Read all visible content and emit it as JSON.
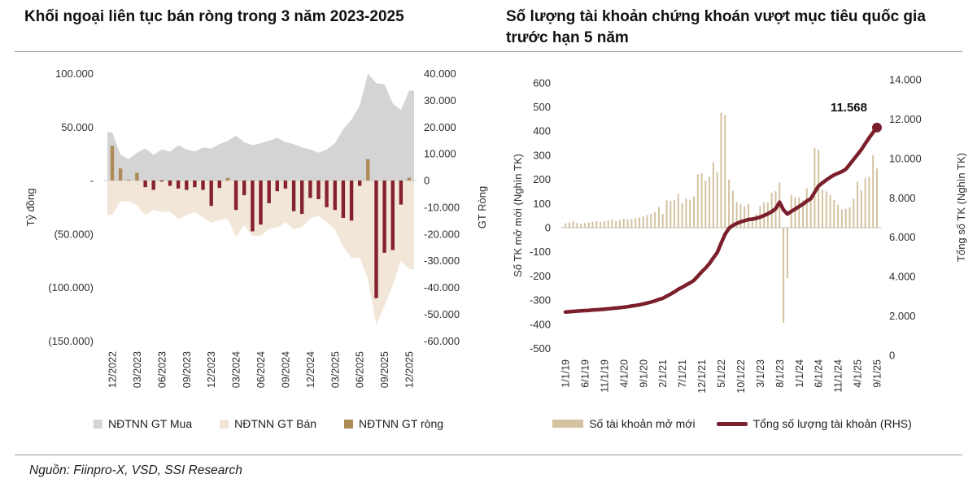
{
  "source": {
    "text": "Nguồn: Fiinpro-X, VSD, SSI Research"
  },
  "chart_data": [
    {
      "id": "foreign-net-selling",
      "type": "combo-area-bar",
      "title": "Khối ngoại liên tục bán ròng trong 3 năm 2023-2025",
      "ylabel_left": "Tỷ đồng",
      "ylabel_right": "GT Ròng",
      "x_frequency": "monthly",
      "x_range": [
        "12/2022",
        "12/2025"
      ],
      "x_tick_labels": [
        "12/2022",
        "03/2023",
        "06/2023",
        "09/2023",
        "12/2023",
        "03/2024",
        "06/2024",
        "09/2024",
        "12/2024",
        "03/2025",
        "06/2025",
        "09/2025",
        "12/2025"
      ],
      "y_left_ticks": {
        "labels": [
          "100.000",
          "50.000",
          "-",
          "(50.000)",
          "(100.000)",
          "(150.000)"
        ],
        "values": [
          100,
          50,
          0,
          -50,
          -100,
          -150
        ]
      },
      "y_right_ticks": {
        "labels": [
          "40.000",
          "30.000",
          "20.000",
          "10.000",
          "0",
          "-10.000",
          "-20.000",
          "-30.000",
          "-40.000",
          "-50.000",
          "-60.000"
        ],
        "values": [
          40,
          30,
          20,
          10,
          0,
          -10,
          -20,
          -30,
          -40,
          -50,
          -60
        ]
      },
      "values_scale": "1 = 1.000 tỷ đồng",
      "ylim_left": [
        -150,
        100
      ],
      "ylim_right": [
        -60,
        40
      ],
      "series": [
        {
          "name": "NĐTNN GT Mua",
          "type": "area",
          "axis": "left",
          "color": "#d4d4d4",
          "values": [
            45,
            24,
            20,
            26,
            30,
            24,
            29,
            27,
            33,
            29,
            27,
            31,
            30,
            34,
            37,
            42,
            36,
            33,
            35,
            37,
            40,
            36,
            34,
            31,
            29,
            26,
            29,
            35,
            48,
            57,
            70,
            100,
            91,
            90,
            72,
            66,
            84
          ]
        },
        {
          "name": "NĐTNN GT Bán",
          "type": "area",
          "axis": "left",
          "color": "#f1e6d8",
          "values": [
            -32,
            -19.5,
            -19.7,
            -23.1,
            -32.5,
            -27.5,
            -29.4,
            -29,
            -36,
            -32.5,
            -29.5,
            -34.5,
            -39.5,
            -36.8,
            -36,
            -53,
            -41.5,
            -52,
            -51.5,
            -45.5,
            -44,
            -39,
            -45.5,
            -43.5,
            -35.5,
            -33,
            -39,
            -46,
            -62,
            -72,
            -72,
            -92,
            -135,
            -117,
            -98,
            -75,
            -83
          ]
        },
        {
          "name": "NĐTNN GT ròng",
          "type": "bar",
          "axis": "right",
          "color_positive": "#ad8a56",
          "color_negative": "#86222f",
          "values": [
            13,
            4.5,
            0.3,
            2.9,
            -2.5,
            -3.5,
            -0.4,
            -2,
            -3,
            -3.5,
            -2.5,
            -3.5,
            -9.5,
            -2.8,
            1,
            -11,
            -5.5,
            -19,
            -16.5,
            -8.5,
            -4,
            -3,
            -11.5,
            -12.5,
            -6.5,
            -7,
            -10,
            -11,
            -14,
            -15,
            -2,
            8,
            -44,
            -27,
            -26,
            -9,
            1
          ]
        }
      ]
    },
    {
      "id": "securities-accounts",
      "type": "combo-bar-line",
      "title": "Số lượng tài khoản chứng khoán vượt mục tiêu quốc gia trước hạn 5 năm",
      "ylabel_left": "Số TK mở mới (Nghìn TK)",
      "ylabel_right": "Tổng số TK (Nghìn TK)",
      "x_frequency": "monthly",
      "x_range": [
        "1/1/19",
        "9/1/25"
      ],
      "x_tick_labels": [
        "1/1/19",
        "6/1/19",
        "11/1/19",
        "4/1/20",
        "9/1/20",
        "2/1/21",
        "7/1/21",
        "12/1/21",
        "5/1/22",
        "10/1/22",
        "3/1/23",
        "8/1/23",
        "1/1/24",
        "6/1/24",
        "11/1/24",
        "4/1/25",
        "9/1/25"
      ],
      "y_left_ticks": {
        "labels": [
          "600",
          "500",
          "400",
          "300",
          "200",
          "100",
          "0",
          "-100",
          "-200",
          "-300",
          "-400",
          "-500"
        ],
        "values": [
          600,
          500,
          400,
          300,
          200,
          100,
          0,
          -100,
          -200,
          -300,
          -400,
          -500
        ]
      },
      "y_right_ticks": {
        "labels": [
          "14.000",
          "12.000",
          "10.000",
          "8.000",
          "6.000",
          "4.000",
          "2.000",
          "0"
        ],
        "values": [
          14000,
          12000,
          10000,
          8000,
          6000,
          4000,
          2000,
          0
        ]
      },
      "ylim_left": [
        -500,
        600
      ],
      "ylim_right": [
        0,
        14000
      ],
      "annotation": {
        "text": "11.568",
        "attached_to": "last point of line series"
      },
      "series": [
        {
          "name": "Số tài khoản mở mới",
          "type": "bar",
          "axis": "left",
          "color": "#d4c2a0",
          "values": [
            18,
            22,
            26,
            20,
            17,
            19,
            22,
            25,
            27,
            24,
            27,
            31,
            34,
            28,
            32,
            37,
            34,
            36,
            39,
            42,
            46,
            52,
            58,
            64,
            86,
            57,
            113,
            110,
            114,
            140,
            101,
            120,
            114,
            129,
            221,
            226,
            195,
            210,
            271,
            230,
            476,
            466,
            199,
            153,
            105,
            97,
            89,
            99,
            36,
            57,
            90,
            105,
            104,
            145,
            151,
            188,
            -394,
            -209,
            135,
            125,
            125,
            113,
            163,
            110,
            330,
            322,
            158,
            150,
            135,
            115,
            95,
            75,
            78,
            85,
            120,
            190,
            155,
            205,
            210,
            300,
            245
          ]
        },
        {
          "name": "Tổng số lượng tài khoản (RHS)",
          "type": "line",
          "axis": "right",
          "color": "#7a1f2b",
          "end_marker": "circle",
          "values": [
            2200,
            2215,
            2230,
            2245,
            2258,
            2272,
            2286,
            2300,
            2315,
            2330,
            2345,
            2362,
            2382,
            2400,
            2420,
            2445,
            2472,
            2502,
            2534,
            2570,
            2610,
            2656,
            2706,
            2762,
            2840,
            2896,
            3006,
            3110,
            3222,
            3356,
            3456,
            3572,
            3682,
            3806,
            4022,
            4242,
            4430,
            4660,
            4950,
            5220,
            5700,
            6150,
            6450,
            6600,
            6700,
            6780,
            6840,
            6900,
            6920,
            6960,
            7020,
            7100,
            7190,
            7300,
            7450,
            7780,
            7390,
            7180,
            7310,
            7430,
            7560,
            7680,
            7840,
            7950,
            8280,
            8600,
            8760,
            8910,
            9040,
            9160,
            9250,
            9330,
            9450,
            9700,
            9950,
            10200,
            10450,
            10750,
            11050,
            11320,
            11568
          ]
        }
      ]
    }
  ]
}
